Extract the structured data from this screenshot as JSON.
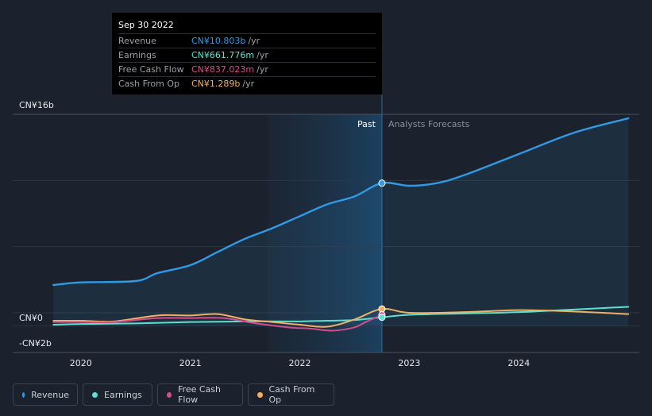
{
  "tooltip": {
    "date": "Sep 30 2022",
    "rows": [
      {
        "label": "Revenue",
        "value": "CN¥10.803b",
        "unit": "/yr",
        "color": "#2f9ae6"
      },
      {
        "label": "Earnings",
        "value": "CN¥661.776m",
        "unit": "/yr",
        "color": "#5ee0cf"
      },
      {
        "label": "Free Cash Flow",
        "value": "CN¥837.023m",
        "unit": "/yr",
        "color": "#d24c8e"
      },
      {
        "label": "Cash From Op",
        "value": "CN¥1.289b",
        "unit": "/yr",
        "color": "#f0b064"
      }
    ]
  },
  "legend": [
    {
      "label": "Revenue",
      "color": "#2f9ae6"
    },
    {
      "label": "Earnings",
      "color": "#5ee0cf"
    },
    {
      "label": "Free Cash Flow",
      "color": "#d24c8e"
    },
    {
      "label": "Cash From Op",
      "color": "#f0b064"
    }
  ],
  "chart_data": {
    "type": "line",
    "title": "",
    "y_ticks": [
      {
        "value": 16,
        "label": "CN¥16b"
      },
      {
        "value": 0,
        "label": "CN¥0"
      },
      {
        "value": -2,
        "label": "-CN¥2b"
      }
    ],
    "x_ticks": [
      2020,
      2021,
      2022,
      2023,
      2024
    ],
    "ylim": [
      -2,
      16
    ],
    "xlim": [
      2019.61,
      2025.1
    ],
    "past_label": "Past",
    "forecast_label": "Analysts Forecasts",
    "divider_x": 2022.75,
    "highlight_x": 2022.75,
    "grid": true,
    "series": [
      {
        "name": "Revenue",
        "color": "#2f9ae6",
        "x": [
          2019.75,
          2020.0,
          2020.5,
          2020.7,
          2021.0,
          2021.25,
          2021.5,
          2021.75,
          2022.0,
          2022.25,
          2022.5,
          2022.75,
          2023.0,
          2023.25,
          2023.5,
          2024.0,
          2024.5,
          2025.0
        ],
        "y": [
          3.1,
          3.3,
          3.4,
          4.0,
          4.6,
          5.6,
          6.6,
          7.4,
          8.3,
          9.2,
          9.8,
          10.8,
          10.6,
          10.8,
          11.4,
          13.0,
          14.6,
          15.7
        ]
      },
      {
        "name": "Earnings",
        "color": "#5ee0cf",
        "x": [
          2019.75,
          2020.0,
          2020.5,
          2021.0,
          2021.5,
          2022.0,
          2022.25,
          2022.5,
          2022.75,
          2023.0,
          2023.5,
          2024.0,
          2024.5,
          2025.0
        ],
        "y": [
          0.1,
          0.15,
          0.2,
          0.3,
          0.35,
          0.35,
          0.4,
          0.45,
          0.66,
          0.85,
          0.95,
          1.05,
          1.25,
          1.45
        ]
      },
      {
        "name": "Free Cash Flow",
        "color": "#d24c8e",
        "x": [
          2019.75,
          2020.0,
          2020.3,
          2020.7,
          2021.0,
          2021.3,
          2021.6,
          2021.9,
          2022.1,
          2022.3,
          2022.5,
          2022.6,
          2022.75
        ],
        "y": [
          0.3,
          0.3,
          0.3,
          0.6,
          0.6,
          0.6,
          0.2,
          -0.1,
          -0.2,
          -0.35,
          -0.1,
          0.3,
          0.84
        ]
      },
      {
        "name": "Cash From Op",
        "color": "#f0b064",
        "x": [
          2019.75,
          2020.0,
          2020.3,
          2020.7,
          2021.0,
          2021.25,
          2021.5,
          2021.75,
          2022.0,
          2022.25,
          2022.5,
          2022.75,
          2023.0,
          2023.5,
          2024.0,
          2024.5,
          2025.0
        ],
        "y": [
          0.4,
          0.4,
          0.35,
          0.8,
          0.8,
          0.9,
          0.5,
          0.3,
          0.1,
          -0.05,
          0.5,
          1.29,
          1.0,
          1.05,
          1.2,
          1.1,
          0.9
        ]
      }
    ]
  }
}
